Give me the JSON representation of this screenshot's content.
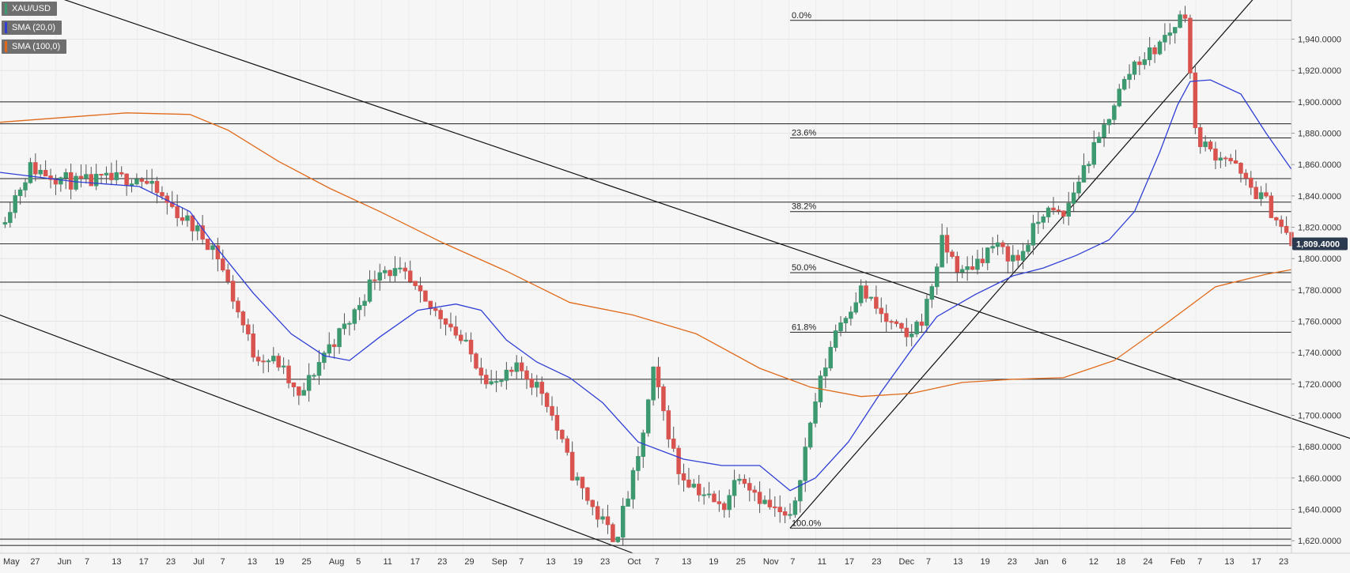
{
  "chart_data": {
    "type": "candlestick",
    "instrument": "XAU/USD",
    "legend": [
      {
        "label": "XAU/USD",
        "color": "#3d9970"
      },
      {
        "label": "SMA (20,0)",
        "color": "#2f3fd6"
      },
      {
        "label": "SMA (100,0)",
        "color": "#e06a1a"
      }
    ],
    "ylim": [
      1612,
      1965
    ],
    "y_ticks": [
      "1,620.0000",
      "1,640.0000",
      "1,660.0000",
      "1,680.0000",
      "1,700.0000",
      "1,720.0000",
      "1,740.0000",
      "1,760.0000",
      "1,780.0000",
      "1,800.0000",
      "1,820.0000",
      "1,840.0000",
      "1,860.0000",
      "1,880.0000",
      "1,900.0000",
      "1,920.0000",
      "1,940.0000"
    ],
    "y_tick_values": [
      1620,
      1640,
      1660,
      1680,
      1700,
      1720,
      1740,
      1760,
      1780,
      1800,
      1820,
      1840,
      1860,
      1880,
      1900,
      1920,
      1940
    ],
    "x_labels": [
      "May",
      "27",
      "Jun",
      "7",
      "13",
      "17",
      "23",
      "Jul",
      "7",
      "13",
      "19",
      "25",
      "Aug",
      "5",
      "11",
      "17",
      "23",
      "29",
      "Sep",
      "7",
      "13",
      "19",
      "23",
      "Oct",
      "7",
      "13",
      "19",
      "25",
      "Nov",
      "7",
      "11",
      "17",
      "23",
      "Dec",
      "7",
      "13",
      "19",
      "23",
      "Jan",
      "6",
      "12",
      "18",
      "24",
      "Feb",
      "7",
      "13",
      "17",
      "23"
    ],
    "current_price": {
      "value": 1809.4,
      "label": "1,809.4000"
    },
    "fibonacci": [
      {
        "label": "0.0%",
        "value": 1952
      },
      {
        "label": "23.6%",
        "value": 1877
      },
      {
        "label": "38.2%",
        "value": 1830
      },
      {
        "label": "50.0%",
        "value": 1791
      },
      {
        "label": "61.8%",
        "value": 1753
      },
      {
        "label": "100.0%",
        "value": 1628
      }
    ],
    "horizontal_levels": [
      1900,
      1886,
      1851,
      1836,
      1785,
      1723,
      1621,
      1617
    ],
    "trendlines": [
      {
        "from": [
          -5,
          1982
        ],
        "to": [
          550,
          1676
        ]
      },
      {
        "from": [
          -5,
          1767
        ],
        "to": [
          250,
          1612
        ]
      },
      {
        "from": [
          312,
          1628
        ],
        "to": [
          500,
          1975
        ]
      }
    ],
    "sma20": [
      [
        0,
        1855
      ],
      [
        30,
        1849
      ],
      [
        55,
        1846
      ],
      [
        75,
        1830
      ],
      [
        85,
        1808
      ],
      [
        100,
        1778
      ],
      [
        115,
        1752
      ],
      [
        128,
        1738
      ],
      [
        138,
        1735
      ],
      [
        150,
        1750
      ],
      [
        165,
        1767
      ],
      [
        180,
        1771
      ],
      [
        190,
        1767
      ],
      [
        200,
        1748
      ],
      [
        212,
        1734
      ],
      [
        225,
        1724
      ],
      [
        238,
        1708
      ],
      [
        252,
        1683
      ],
      [
        270,
        1672
      ],
      [
        285,
        1668
      ],
      [
        300,
        1668
      ],
      [
        312,
        1652
      ],
      [
        322,
        1660
      ],
      [
        335,
        1683
      ],
      [
        348,
        1715
      ],
      [
        360,
        1742
      ],
      [
        370,
        1763
      ],
      [
        385,
        1777
      ],
      [
        400,
        1789
      ],
      [
        412,
        1794
      ],
      [
        425,
        1802
      ],
      [
        438,
        1812
      ],
      [
        448,
        1830
      ],
      [
        458,
        1868
      ],
      [
        465,
        1898
      ],
      [
        470,
        1913
      ],
      [
        478,
        1914
      ],
      [
        490,
        1905
      ],
      [
        500,
        1880
      ],
      [
        510,
        1857
      ]
    ],
    "sma100": [
      [
        0,
        1887
      ],
      [
        25,
        1890
      ],
      [
        50,
        1893
      ],
      [
        75,
        1892
      ],
      [
        90,
        1882
      ],
      [
        110,
        1862
      ],
      [
        130,
        1845
      ],
      [
        150,
        1830
      ],
      [
        175,
        1810
      ],
      [
        200,
        1792
      ],
      [
        225,
        1772
      ],
      [
        250,
        1764
      ],
      [
        275,
        1752
      ],
      [
        300,
        1730
      ],
      [
        320,
        1718
      ],
      [
        340,
        1712
      ],
      [
        360,
        1714
      ],
      [
        380,
        1721
      ],
      [
        400,
        1723
      ],
      [
        420,
        1724
      ],
      [
        440,
        1735
      ],
      [
        460,
        1758
      ],
      [
        480,
        1782
      ],
      [
        500,
        1790
      ],
      [
        510,
        1793
      ]
    ]
  }
}
